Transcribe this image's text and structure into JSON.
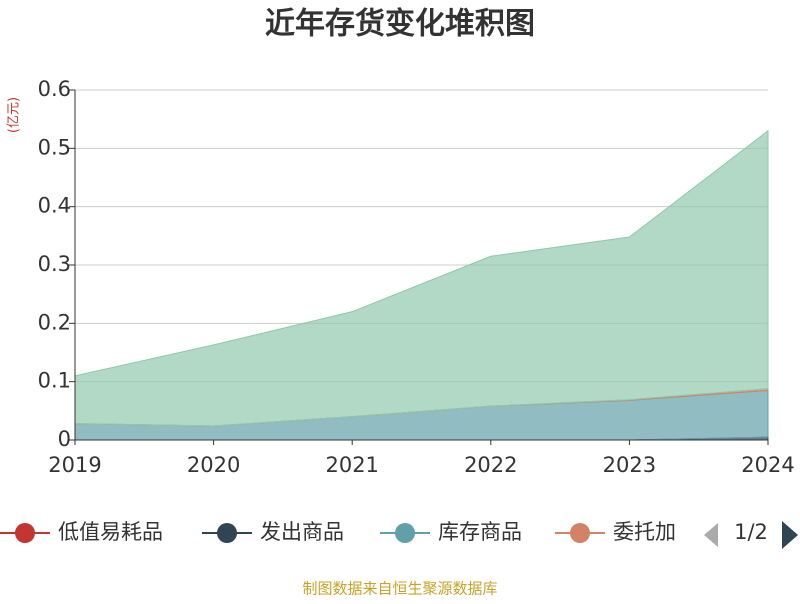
{
  "chart_data": {
    "type": "stacked-area",
    "title": "近年存货变化堆积图",
    "y_unit": "(亿元)",
    "categories": [
      "2019",
      "2020",
      "2021",
      "2022",
      "2023",
      "2024"
    ],
    "series": [
      {
        "name": "低值易耗品",
        "color": "#c23531",
        "values": [
          0,
          0,
          0,
          0,
          0,
          0
        ]
      },
      {
        "name": "发出商品",
        "color": "#2f4554",
        "values": [
          0,
          0,
          0,
          0,
          0,
          0.005
        ]
      },
      {
        "name": "库存商品",
        "color": "#61a0a8",
        "values": [
          0.028,
          0.024,
          0.04,
          0.058,
          0.068,
          0.08
        ]
      },
      {
        "name": "委托加",
        "color": "#d48265",
        "values": [
          0,
          0,
          0,
          0,
          0.001,
          0.003
        ]
      },
      {
        "color": "#91c7ae",
        "values": [
          0.082,
          0.139,
          0.18,
          0.257,
          0.279,
          0.442
        ]
      }
    ],
    "ylim": [
      0,
      0.6
    ],
    "yticks": [
      0,
      0.1,
      0.2,
      0.3,
      0.4,
      0.5,
      0.6
    ],
    "grid": true,
    "legend_page": "1/2",
    "source": "制图数据来自恒生聚源数据库"
  }
}
